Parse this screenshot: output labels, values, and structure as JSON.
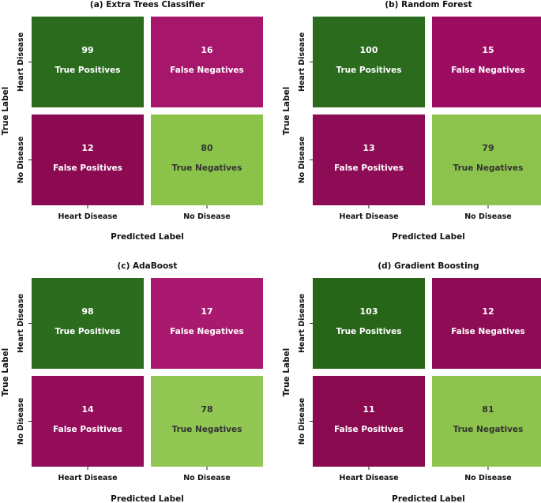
{
  "chart_data": [
    {
      "type": "heatmap",
      "title": "(a) Extra Trees Classifier",
      "xlabel": "Predicted Label",
      "ylabel": "True Label",
      "x_categories": [
        "Heart Disease",
        "No Disease"
      ],
      "y_categories": [
        "Heart Disease",
        "No Disease"
      ],
      "values": [
        [
          99,
          16
        ],
        [
          12,
          80
        ]
      ],
      "cell_labels": [
        [
          "True Positives",
          "False Negatives"
        ],
        [
          "False Positives",
          "True Negatives"
        ]
      ],
      "cell_colors": [
        [
          "#2a6b1e",
          "#a6166b"
        ],
        [
          "#8c0a52",
          "#8bc34a"
        ]
      ],
      "text_colors": [
        [
          "#ffffff",
          "#ffffff"
        ],
        [
          "#ffffff",
          "#333333"
        ]
      ]
    },
    {
      "type": "heatmap",
      "title": "(b) Random Forest",
      "xlabel": "Predicted Label",
      "ylabel": "True Label",
      "x_categories": [
        "Heart Disease",
        "No Disease"
      ],
      "y_categories": [
        "Heart Disease",
        "No Disease"
      ],
      "values": [
        [
          100,
          15
        ],
        [
          13,
          79
        ]
      ],
      "cell_labels": [
        [
          "True Positives",
          "False Negatives"
        ],
        [
          "False Positives",
          "True Negatives"
        ]
      ],
      "cell_colors": [
        [
          "#2a6b1e",
          "#9c0d62"
        ],
        [
          "#8e0b55",
          "#8cc34c"
        ]
      ],
      "text_colors": [
        [
          "#ffffff",
          "#ffffff"
        ],
        [
          "#ffffff",
          "#333333"
        ]
      ]
    },
    {
      "type": "heatmap",
      "title": "(c) AdaBoost",
      "xlabel": "Predicted Label",
      "ylabel": "True Label",
      "x_categories": [
        "Heart Disease",
        "No Disease"
      ],
      "y_categories": [
        "Heart Disease",
        "No Disease"
      ],
      "values": [
        [
          98,
          17
        ],
        [
          14,
          78
        ]
      ],
      "cell_labels": [
        [
          "True Positives",
          "False Negatives"
        ],
        [
          "False Positives",
          "True Negatives"
        ]
      ],
      "cell_colors": [
        [
          "#2b6c1f",
          "#a9196f"
        ],
        [
          "#930d5a",
          "#91c752"
        ]
      ],
      "text_colors": [
        [
          "#ffffff",
          "#ffffff"
        ],
        [
          "#ffffff",
          "#333333"
        ]
      ]
    },
    {
      "type": "heatmap",
      "title": "(d) Gradient Boosting",
      "xlabel": "Predicted Label",
      "ylabel": "True Label",
      "x_categories": [
        "Heart Disease",
        "No Disease"
      ],
      "y_categories": [
        "Heart Disease",
        "No Disease"
      ],
      "values": [
        [
          103,
          12
        ],
        [
          11,
          81
        ]
      ],
      "cell_labels": [
        [
          "True Positives",
          "False Negatives"
        ],
        [
          "False Positives",
          "True Negatives"
        ]
      ],
      "cell_colors": [
        [
          "#276519",
          "#8e0b55"
        ],
        [
          "#8a0a50",
          "#8ec44d"
        ]
      ],
      "text_colors": [
        [
          "#ffffff",
          "#ffffff"
        ],
        [
          "#ffffff",
          "#333333"
        ]
      ]
    }
  ]
}
